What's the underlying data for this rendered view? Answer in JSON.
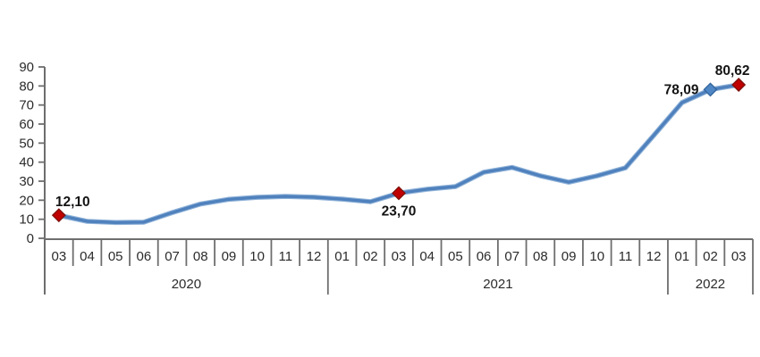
{
  "chart_data": {
    "type": "line",
    "title": "",
    "x": {
      "months": [
        "03",
        "04",
        "05",
        "06",
        "07",
        "08",
        "09",
        "10",
        "11",
        "12",
        "01",
        "02",
        "03",
        "04",
        "05",
        "06",
        "07",
        "08",
        "09",
        "10",
        "11",
        "12",
        "01",
        "02",
        "03"
      ],
      "year_groups": [
        {
          "label": "2020",
          "month_count": 10
        },
        {
          "label": "2021",
          "month_count": 12
        },
        {
          "label": "2022",
          "month_count": 3
        }
      ]
    },
    "series": [
      {
        "values": [
          12.1,
          8.9,
          8.3,
          8.5,
          13.5,
          18.0,
          20.5,
          21.5,
          22.0,
          21.6,
          20.6,
          19.2,
          23.7,
          25.8,
          27.2,
          34.7,
          37.2,
          32.8,
          29.5,
          32.8,
          37.0,
          54.0,
          71.3,
          78.09,
          80.62
        ]
      }
    ],
    "labeled_points": [
      {
        "index": 0,
        "month": "03",
        "year": "2020",
        "value": 12.1,
        "label": "12,10",
        "marker": "red-diamond",
        "label_position": "above-right"
      },
      {
        "index": 12,
        "month": "03",
        "year": "2021",
        "value": 23.7,
        "label": "23,70",
        "marker": "red-diamond",
        "label_position": "below"
      },
      {
        "index": 23,
        "month": "02",
        "year": "2022",
        "value": 78.09,
        "label": "78,09",
        "marker": "blue-diamond",
        "label_position": "left"
      },
      {
        "index": 24,
        "month": "03",
        "year": "2022",
        "value": 80.62,
        "label": "80,62",
        "marker": "red-diamond",
        "label_position": "above"
      }
    ],
    "y_axis": {
      "min": 0,
      "max": 90,
      "step": 10,
      "tick_labels": [
        "0",
        "10",
        "20",
        "30",
        "40",
        "50",
        "60",
        "70",
        "80",
        "90"
      ]
    },
    "grid": false,
    "legend": null,
    "colors": {
      "line": "#4f81bd",
      "line_halo": "#8fb2d8",
      "red_marker": "#c00000",
      "red_marker_border": "#7f100c",
      "blue_marker": "#4f87c5",
      "blue_marker_border": "#35679f",
      "axis": "#6e6e6e",
      "tick_text": "#2b2b2b",
      "data_label_text": "#141414",
      "background": "#ffffff"
    }
  }
}
